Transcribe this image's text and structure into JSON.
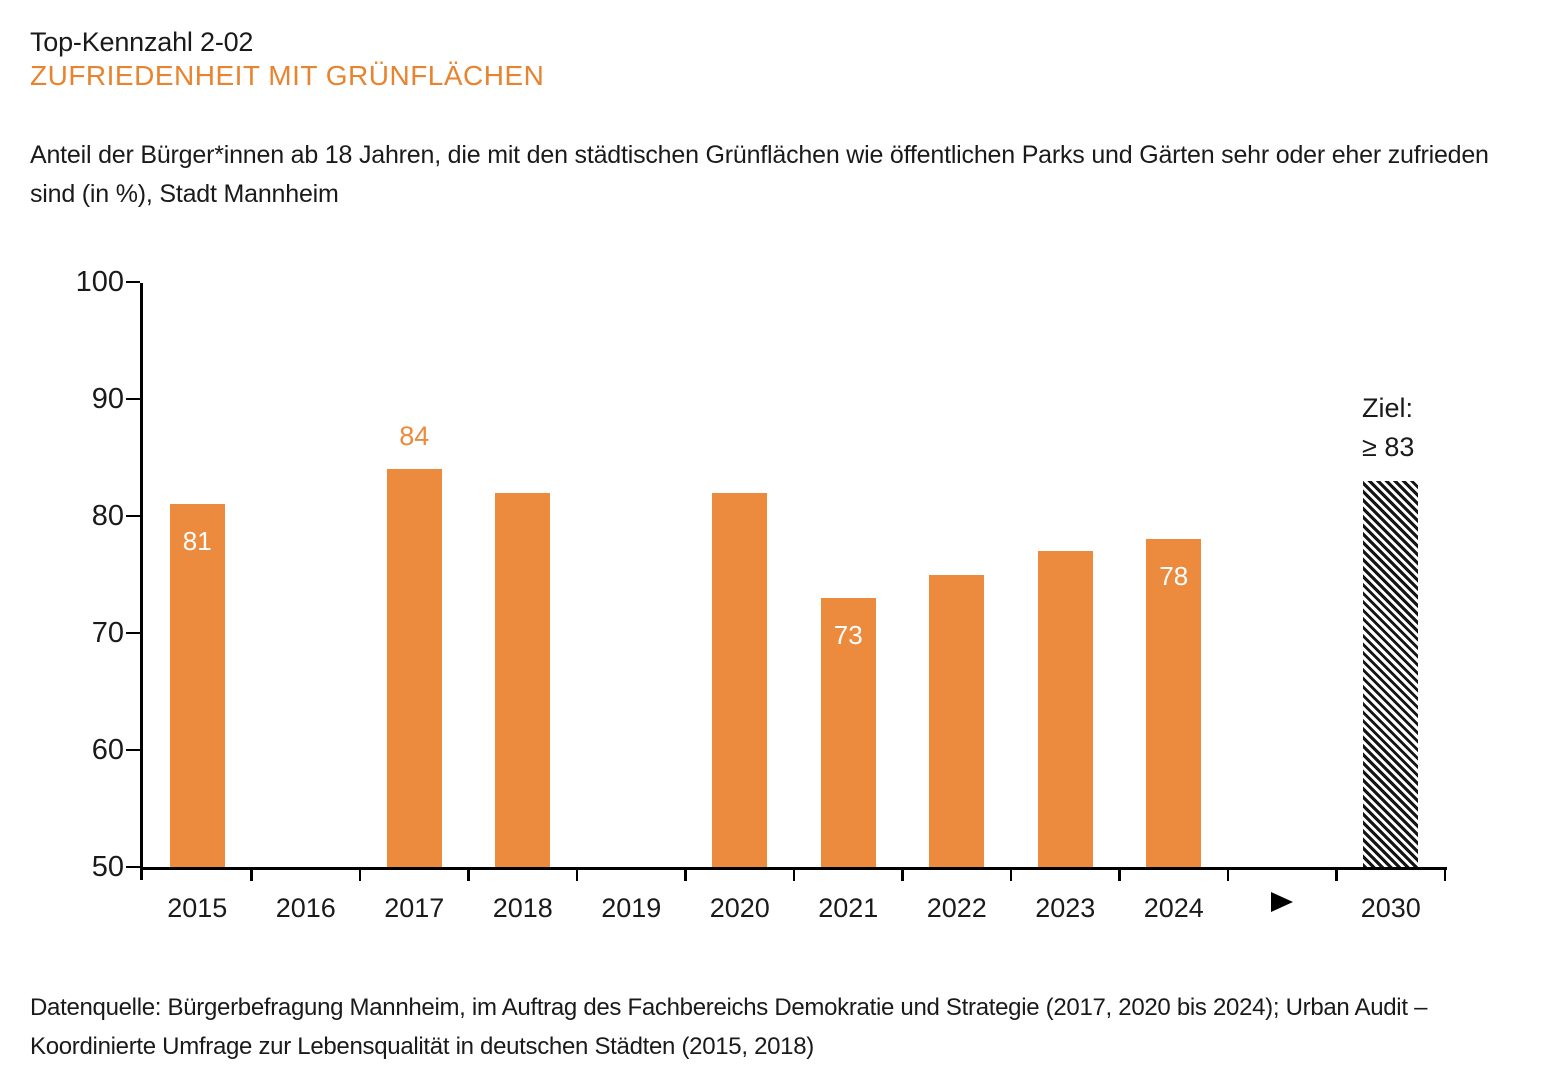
{
  "header": {
    "kicker": "Top-Kennzahl 2-02",
    "title": "ZUFRIEDENHEIT MIT GRÜNFLÄCHEN",
    "description": "Anteil der Bürger*innen ab 18 Jahren, die mit den städtischen Grünflächen wie öffentlichen Parks und Gärten sehr oder eher zufrieden sind (in %), Stadt Mannheim"
  },
  "chart_data": {
    "type": "bar",
    "title": "Zufriedenheit mit Grünflächen",
    "unit": "%",
    "xlabel": "",
    "ylabel": "",
    "ylim": [
      50,
      100
    ],
    "yticks": [
      50,
      60,
      70,
      80,
      90,
      100
    ],
    "grid": false,
    "legend": "none",
    "categories": [
      "2015",
      "2016",
      "2017",
      "2018",
      "2019",
      "2020",
      "2021",
      "2022",
      "2023",
      "2024",
      "",
      "2030"
    ],
    "values": [
      81,
      null,
      84,
      82,
      null,
      82,
      73,
      75,
      77,
      78,
      null,
      null
    ],
    "bars": [
      {
        "category": "2015",
        "value": 81,
        "show_label": true,
        "label_position": "inside"
      },
      {
        "category": "2016",
        "value": null
      },
      {
        "category": "2017",
        "value": 84,
        "show_label": true,
        "label_position": "above"
      },
      {
        "category": "2018",
        "value": 82,
        "show_label": false
      },
      {
        "category": "2019",
        "value": null
      },
      {
        "category": "2020",
        "value": 82,
        "show_label": false
      },
      {
        "category": "2021",
        "value": 73,
        "show_label": true,
        "label_position": "inside"
      },
      {
        "category": "2022",
        "value": 75,
        "show_label": false
      },
      {
        "category": "2023",
        "value": 77,
        "show_label": false
      },
      {
        "category": "2024",
        "value": 78,
        "show_label": true,
        "label_position": "inside"
      },
      {
        "category": "",
        "value": null,
        "marker": "arrow-right",
        "glyph": "▶"
      },
      {
        "category": "2030",
        "value": 83,
        "target": true,
        "pattern": "diagonal-hatch",
        "show_label": false
      }
    ],
    "target": {
      "year": "2030",
      "operator": "≥",
      "value": 83
    },
    "target_label": {
      "line1": "Ziel:",
      "line2": "≥ 83"
    }
  },
  "colors": {
    "accent_heading": "#E8842F",
    "bar": "#EC8B3E",
    "value_label_inside": "#FFFFFF",
    "hatch_dark": "#151515",
    "hatch_light": "#FFFFFF",
    "axis": "#000000",
    "text": "#1A1A1A"
  },
  "footer": {
    "source_line1": "Datenquelle: Bürgerbefragung Mannheim, im Auftrag des Fachbereichs Demokratie und Strategie (2017, 2020 bis 2024); Urban Audit –",
    "source_line2": "Koordinierte Umfrage zur Lebensqualität in deutschen Städten (2015, 2018)"
  }
}
